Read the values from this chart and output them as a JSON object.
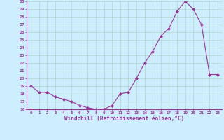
{
  "x": [
    0,
    1,
    2,
    3,
    4,
    5,
    6,
    7,
    8,
    9,
    10,
    11,
    12,
    13,
    14,
    15,
    16,
    17,
    18,
    19,
    20,
    21,
    22,
    23
  ],
  "y": [
    19.0,
    18.2,
    18.2,
    17.6,
    17.3,
    17.0,
    16.5,
    16.2,
    16.0,
    16.0,
    16.5,
    18.0,
    18.2,
    20.0,
    22.0,
    23.5,
    25.5,
    26.5,
    28.7,
    30.0,
    29.0,
    27.0,
    20.5,
    20.5
  ],
  "line_color": "#993399",
  "marker": "D",
  "marker_size": 2,
  "bg_color": "#cceeff",
  "grid_color": "#aaccbb",
  "xlabel": "Windchill (Refroidissement éolien,°C)",
  "xlabel_color": "#993399",
  "tick_color": "#993399",
  "ylim": [
    16,
    30
  ],
  "xlim": [
    -0.5,
    23.5
  ],
  "yticks": [
    16,
    17,
    18,
    19,
    20,
    21,
    22,
    23,
    24,
    25,
    26,
    27,
    28,
    29,
    30
  ],
  "xticks": [
    0,
    1,
    2,
    3,
    4,
    5,
    6,
    7,
    8,
    9,
    10,
    11,
    12,
    13,
    14,
    15,
    16,
    17,
    18,
    19,
    20,
    21,
    22,
    23
  ],
  "spine_color": "#993399",
  "axis_linewidth": 0.8
}
